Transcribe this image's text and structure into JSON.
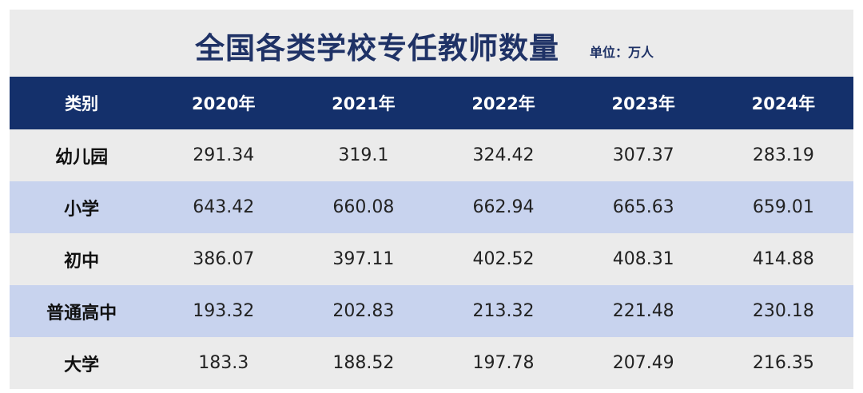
{
  "title": "全国各类学校专任教师数量",
  "unit": "单位：万人",
  "chart_data": {
    "type": "table",
    "columns": [
      "类别",
      "2020年",
      "2021年",
      "2022年",
      "2023年",
      "2024年"
    ],
    "rows": [
      {
        "category": "幼儿园",
        "values": [
          "291.34",
          "319.1",
          "324.42",
          "307.37",
          "283.19"
        ]
      },
      {
        "category": "小学",
        "values": [
          "643.42",
          "660.08",
          "662.94",
          "665.63",
          "659.01"
        ]
      },
      {
        "category": "初中",
        "values": [
          "386.07",
          "397.11",
          "402.52",
          "408.31",
          "414.88"
        ]
      },
      {
        "category": "普通高中",
        "values": [
          "193.32",
          "202.83",
          "213.32",
          "221.48",
          "230.18"
        ]
      },
      {
        "category": "大学",
        "values": [
          "183.3",
          "188.52",
          "197.78",
          "207.49",
          "216.35"
        ]
      }
    ]
  },
  "colors": {
    "header_bg": "#14306b",
    "title_text": "#1f3266",
    "row_light": "#ebebeb",
    "row_blue": "#c8d3ee"
  }
}
